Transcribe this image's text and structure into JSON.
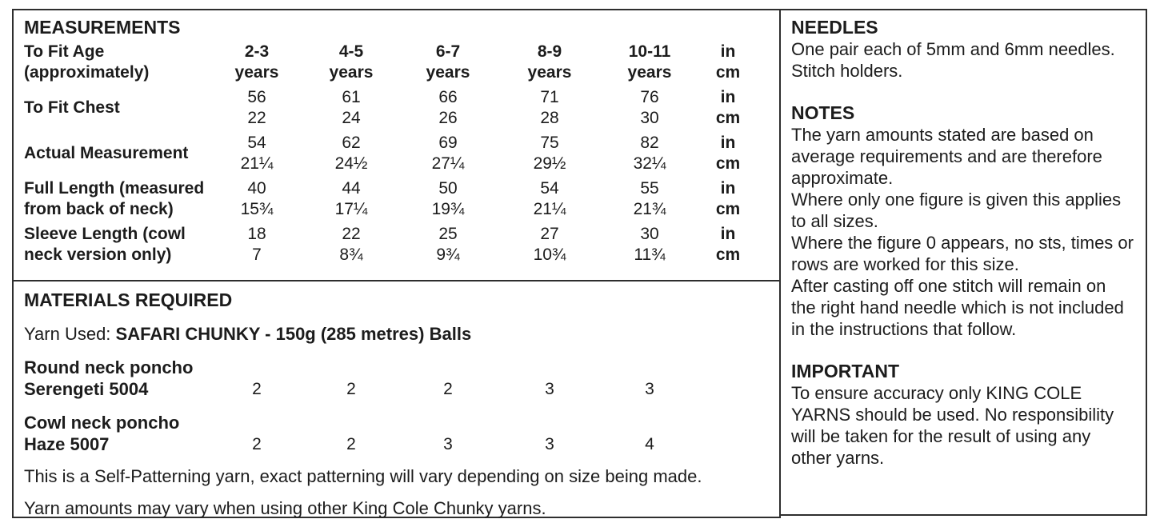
{
  "measurements": {
    "heading": "MEASUREMENTS",
    "header": {
      "label_line1": "To Fit Age",
      "label_line2": "(approximately)",
      "sizes": [
        {
          "age": "2-3",
          "suffix": "years"
        },
        {
          "age": "4-5",
          "suffix": "years"
        },
        {
          "age": "6-7",
          "suffix": "years"
        },
        {
          "age": "8-9",
          "suffix": "years"
        },
        {
          "age": "10-11",
          "suffix": "years"
        }
      ],
      "unit_top": "in",
      "unit_bottom": "cm"
    },
    "rows": [
      {
        "label_line1": "To Fit Chest",
        "label_line2": "",
        "top_values": [
          "56",
          "61",
          "66",
          "71",
          "76"
        ],
        "bottom_values": [
          "22",
          "24",
          "26",
          "28",
          "30"
        ],
        "unit_top": "in",
        "unit_bottom": "cm"
      },
      {
        "label_line1": "Actual Measurement",
        "label_line2": "",
        "top_values": [
          "54",
          "62",
          "69",
          "75",
          "82"
        ],
        "bottom_values": [
          "21¼",
          "24½",
          "27¼",
          "29½",
          "32¼"
        ],
        "unit_top": "in",
        "unit_bottom": "cm"
      },
      {
        "label_line1": "Full Length (measured",
        "label_line2": "from back of neck)",
        "top_values": [
          "40",
          "44",
          "50",
          "54",
          "55"
        ],
        "bottom_values": [
          "15¾",
          "17¼",
          "19¾",
          "21¼",
          "21¾"
        ],
        "unit_top": "in",
        "unit_bottom": "cm"
      },
      {
        "label_line1": "Sleeve Length (cowl",
        "label_line2": "neck version only)",
        "top_values": [
          "18",
          "22",
          "25",
          "27",
          "30"
        ],
        "bottom_values": [
          "7",
          "8¾",
          "9¾",
          "10¾",
          "11¾"
        ],
        "unit_top": "in",
        "unit_bottom": "cm"
      }
    ]
  },
  "materials": {
    "heading": "MATERIALS REQUIRED",
    "yarn_used_label": "Yarn Used: ",
    "yarn_used_value": "SAFARI CHUNKY - 150g (285 metres) Balls",
    "rows": [
      {
        "name_line1": "Round neck poncho",
        "name_line2": "Serengeti 5004",
        "balls": [
          "2",
          "2",
          "2",
          "3",
          "3"
        ]
      },
      {
        "name_line1": "Cowl neck poncho",
        "name_line2": "Haze 5007",
        "balls": [
          "2",
          "2",
          "3",
          "3",
          "4"
        ]
      }
    ],
    "note1": "This is a Self-Patterning yarn, exact patterning will vary depending on size being made.",
    "note2": "Yarn amounts may vary when using other King Cole Chunky yarns."
  },
  "sidebar": {
    "needles": {
      "heading": "NEEDLES",
      "line1": "One pair each of 5mm and 6mm needles.",
      "line2": "Stitch holders."
    },
    "notes": {
      "heading": "NOTES",
      "paragraphs": [
        "The yarn amounts stated are based on average requirements and are therefore approximate.",
        "Where only one figure is given this applies to all sizes.",
        "Where the figure 0 appears, no sts, times or rows are worked for this size.",
        "After casting off one stitch will remain on the right hand needle which is not included in the instructions that follow."
      ]
    },
    "important": {
      "heading": "IMPORTANT",
      "text": "To ensure accuracy only KING COLE YARNS should be used. No responsibility will be taken for the result of using any other yarns."
    }
  },
  "colors": {
    "text": "#1c1c1c",
    "border": "#2e2e2e",
    "background": "#ffffff"
  }
}
